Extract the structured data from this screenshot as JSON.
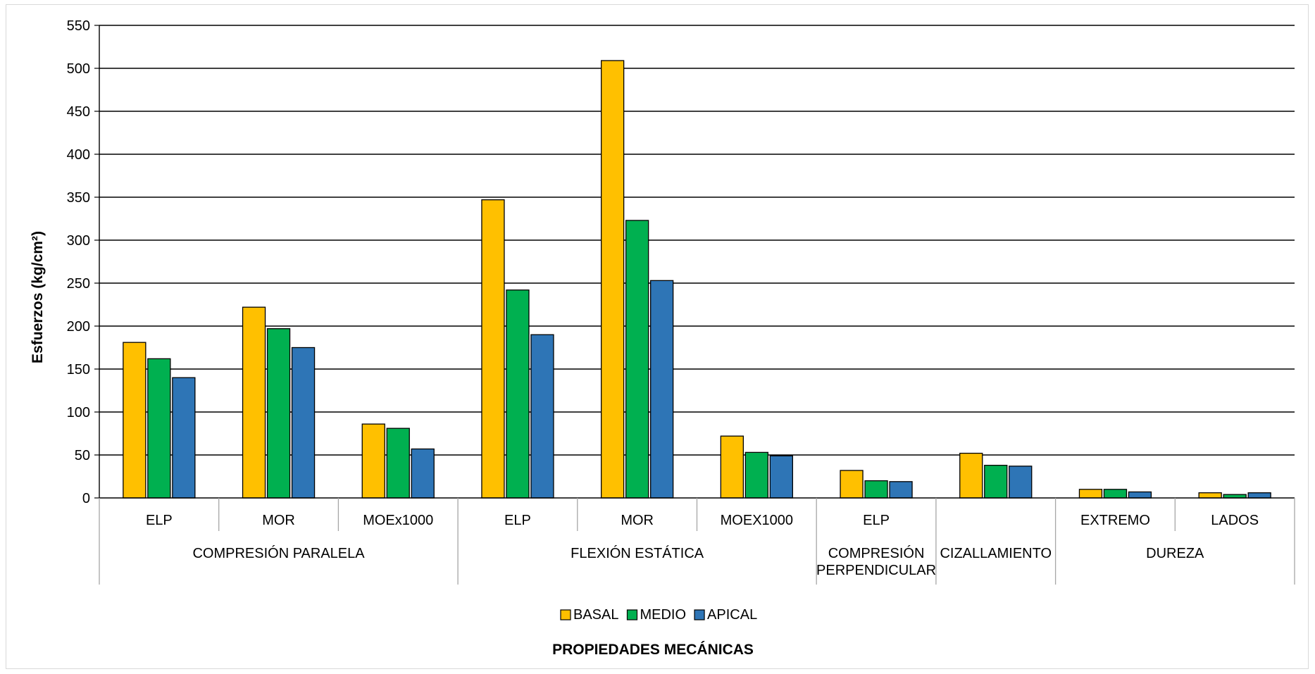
{
  "chart_data": {
    "type": "bar",
    "xlabel": "PROPIEDADES MECÁNICAS",
    "ylabel": "Esfuerzos (kg/cm²)",
    "ylim": [
      0,
      550
    ],
    "y_ticks": [
      0,
      50,
      100,
      150,
      200,
      250,
      300,
      350,
      400,
      450,
      500,
      550
    ],
    "grid": true,
    "legend_position": "bottom",
    "categories": [
      "ELP",
      "MOR",
      "MOEx1000",
      "ELP",
      "MOR",
      "MOEX1000",
      "ELP",
      "",
      "EXTREMO",
      "LADOS"
    ],
    "groups": [
      {
        "label": "COMPRESIÓN PARALELA",
        "lines": [
          "COMPRESIÓN PARALELA"
        ],
        "span": 3
      },
      {
        "label": "FLEXIÓN ESTÁTICA",
        "lines": [
          "FLEXIÓN ESTÁTICA"
        ],
        "span": 3
      },
      {
        "label": "COMPRESIÓN PERPENDICULAR",
        "lines": [
          "COMPRESIÓN",
          "PERPENDICULAR"
        ],
        "span": 1
      },
      {
        "label": "CIZALLAMIENTO",
        "lines": [
          "CIZALLAMIENTO"
        ],
        "span": 1
      },
      {
        "label": "DUREZA",
        "lines": [
          "DUREZA"
        ],
        "span": 2
      }
    ],
    "series": [
      {
        "name": "BASAL",
        "color": "#FFC000",
        "values": [
          181,
          222,
          86,
          347,
          509,
          72,
          32,
          52,
          10,
          6
        ]
      },
      {
        "name": "MEDIO",
        "color": "#00B050",
        "values": [
          162,
          197,
          81,
          242,
          323,
          53,
          20,
          38,
          10,
          4
        ]
      },
      {
        "name": "APICAL",
        "color": "#2E75B6",
        "values": [
          140,
          175,
          57,
          190,
          253,
          49,
          19,
          37,
          7,
          6
        ]
      }
    ]
  }
}
